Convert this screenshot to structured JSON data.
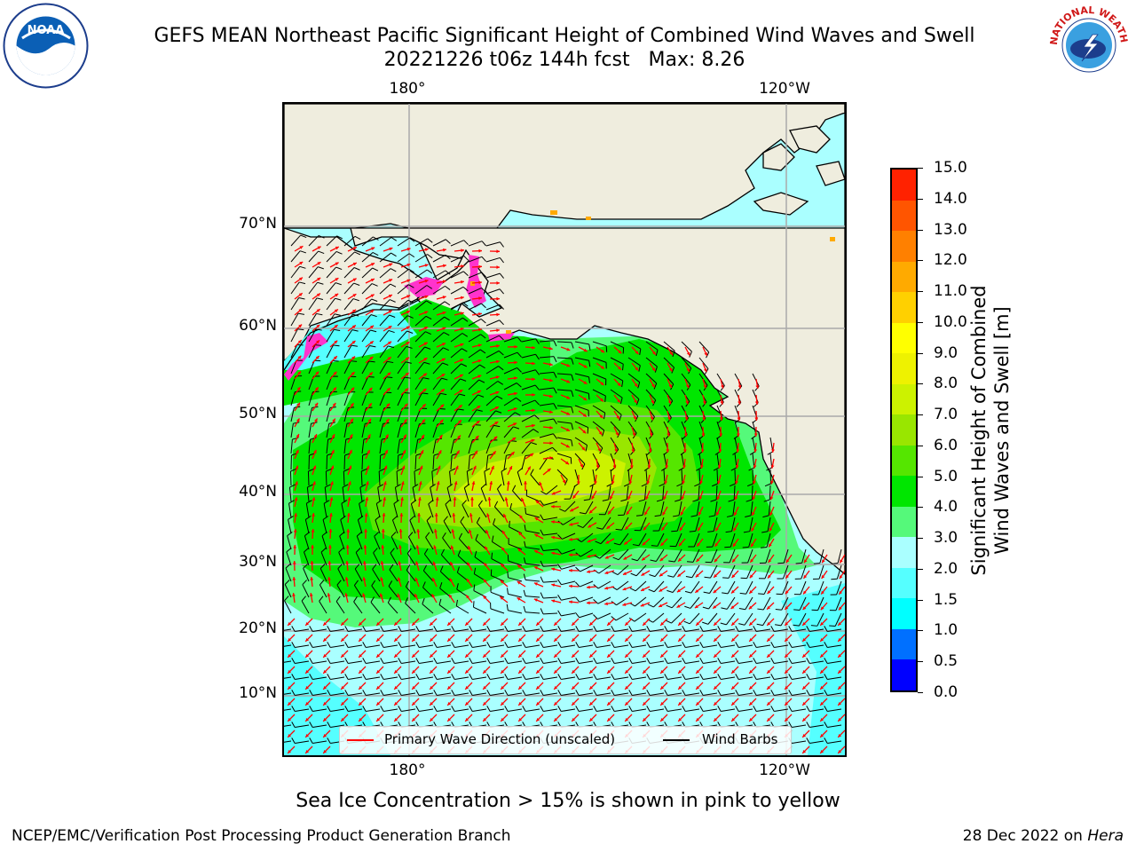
{
  "header": {
    "title_line1": "GEFS MEAN Northeast Pacific Significant Height of Combined Wind Waves and Swell",
    "title_line2": "20221226 t06z 144h fcst   Max: 8.26"
  },
  "logos": {
    "noaa_text": "NOAA",
    "noaa_ring_text": "NATIONAL OCEANIC AND ATMOSPHERIC ADMINISTRATION · U.S. DEPARTMENT OF COMMERCE",
    "nws_ring_text": "NATIONAL WEATHER SERVICE"
  },
  "map": {
    "lon_labels_top": [
      "180°",
      "120°W"
    ],
    "lon_labels_bottom": [
      "180°",
      "120°W"
    ],
    "lat_labels": [
      "70°N",
      "60°N",
      "50°N",
      "40°N",
      "30°N",
      "20°N",
      "10°N"
    ],
    "max_value": 8.26,
    "colors": {
      "land": "#efedde",
      "ocean_low": "#aaffff",
      "ocean_mid": "#55f97a",
      "ocean_green": "#00e600",
      "ocean_yellowgreen": "#ccf200",
      "wave_arrow": "#ff0000",
      "wind_barb": "#000000",
      "ice": "#ff33cc"
    }
  },
  "legend": {
    "wave_label": "Primary Wave Direction (unscaled)",
    "barb_label": "Wind Barbs"
  },
  "colorbar": {
    "label": "Significant Height of Combined\nWind Waves and Swell [m]",
    "ticks": [
      "0.0",
      "0.5",
      "1.0",
      "1.5",
      "2.0",
      "3.0",
      "4.0",
      "5.0",
      "6.0",
      "7.0",
      "8.0",
      "9.0",
      "10.0",
      "11.0",
      "12.0",
      "13.0",
      "14.0",
      "15.0"
    ],
    "colors": [
      "#0000ff",
      "#0070ff",
      "#00ffff",
      "#55ffff",
      "#aaffff",
      "#55f97a",
      "#00e600",
      "#55e600",
      "#99e600",
      "#ccf200",
      "#eef200",
      "#ffff00",
      "#ffd000",
      "#ffaa00",
      "#ff8000",
      "#ff5500",
      "#ff2200",
      "#ff0000"
    ]
  },
  "footer": {
    "note": "Sea Ice Concentration > 15% is shown in pink to yellow",
    "credit_left": "NCEP/EMC/Verification Post Processing Product Generation Branch",
    "credit_date": "28 Dec 2022 on ",
    "credit_host": "Hera"
  }
}
